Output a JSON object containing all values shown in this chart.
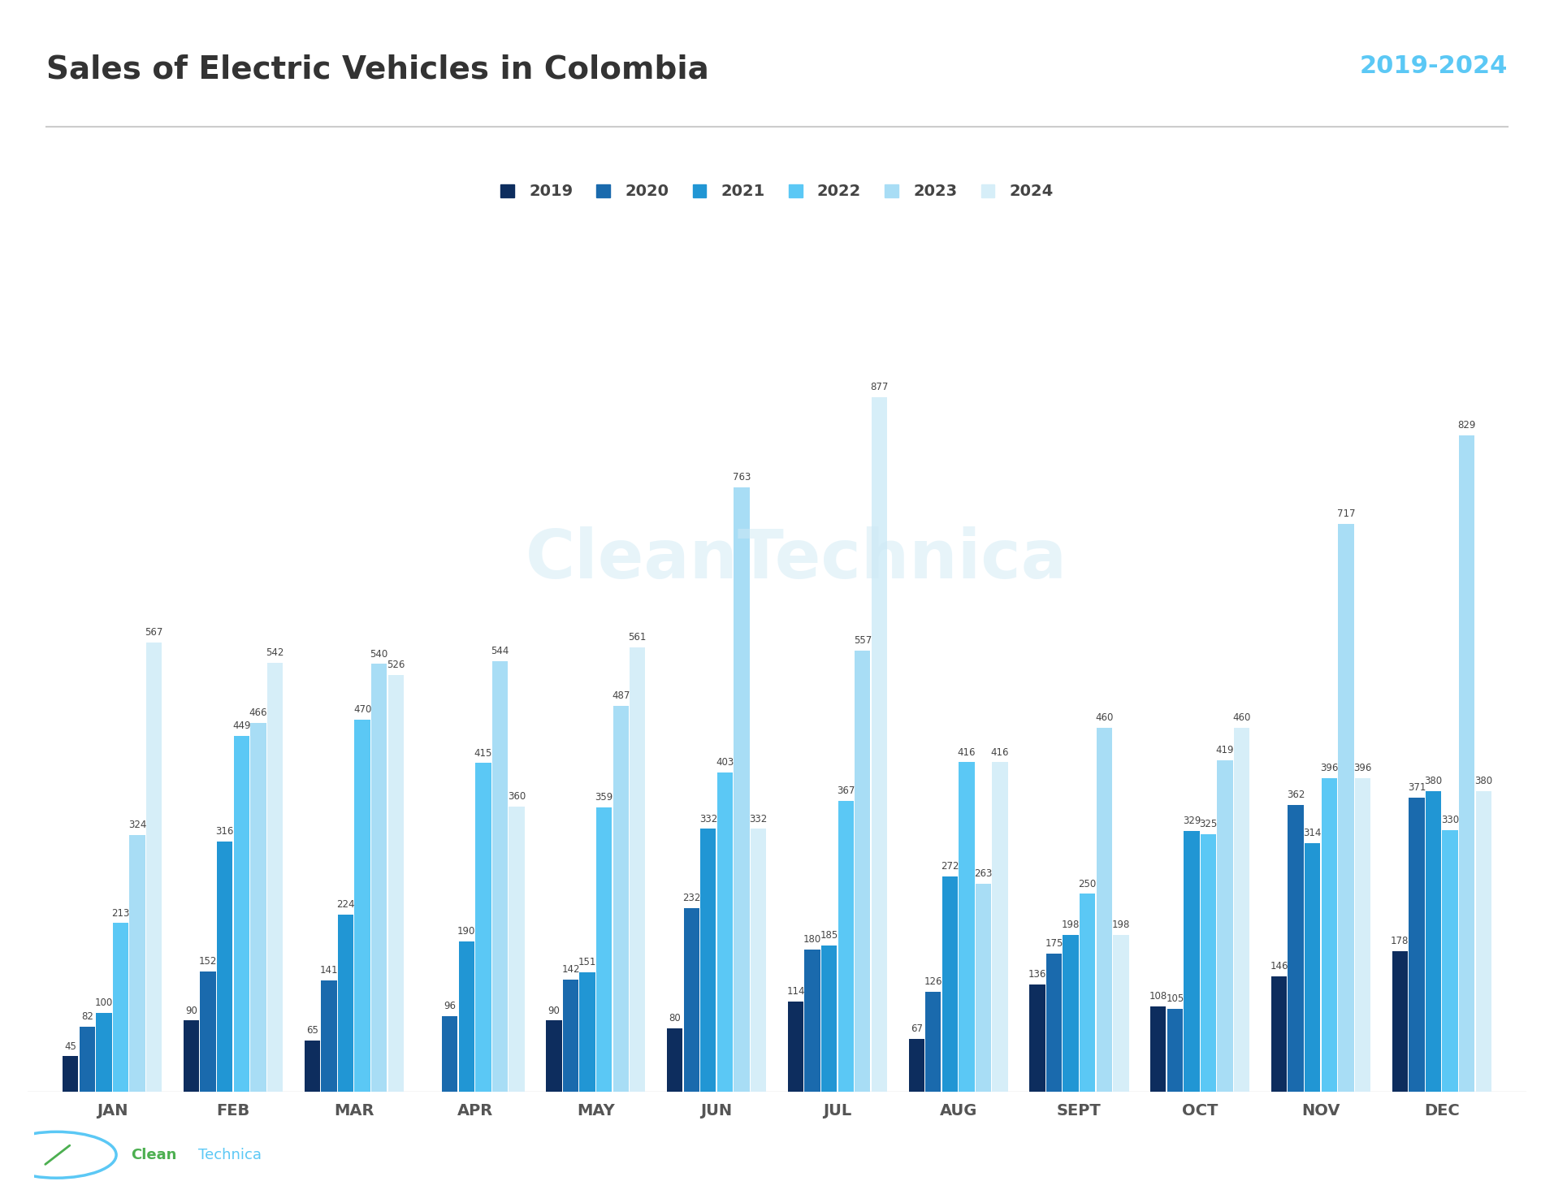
{
  "title": "Sales of Electric Vehicles in Colombia",
  "year_label": "2019-2024",
  "months": [
    "JAN",
    "FEB",
    "MAR",
    "APR",
    "MAY",
    "JUN",
    "JUL",
    "AUG",
    "SEPT",
    "OCT",
    "NOV",
    "DEC"
  ],
  "years": [
    "2019",
    "2020",
    "2021",
    "2022",
    "2023",
    "2024"
  ],
  "colors": {
    "2019": "#0d2d5e",
    "2020": "#1a6aad",
    "2021": "#2196d4",
    "2022": "#5bc8f5",
    "2023": "#a8ddf5",
    "2024": "#d6eef8"
  },
  "data": {
    "2019": [
      45,
      90,
      65,
      0,
      90,
      80,
      114,
      67,
      136,
      108,
      146,
      178
    ],
    "2020": [
      82,
      152,
      141,
      96,
      142,
      232,
      180,
      126,
      175,
      105,
      362,
      371
    ],
    "2021": [
      100,
      316,
      224,
      190,
      151,
      332,
      185,
      272,
      198,
      329,
      314,
      380
    ],
    "2022": [
      213,
      449,
      470,
      415,
      359,
      403,
      367,
      416,
      250,
      325,
      396,
      330
    ],
    "2023": [
      324,
      466,
      540,
      544,
      487,
      763,
      557,
      263,
      460,
      419,
      717,
      829
    ],
    "2024": [
      567,
      542,
      526,
      360,
      561,
      332,
      877,
      416,
      198,
      460,
      396,
      380
    ]
  },
  "background_color": "#ffffff",
  "title_color": "#333333",
  "year_label_color": "#5bc8f5",
  "title_fontsize": 28,
  "year_label_fontsize": 22,
  "watermark_text": "CleanTechnica",
  "watermark_color": "#d0eaf5",
  "footer_clean": "Clean",
  "footer_technica": "Technica"
}
